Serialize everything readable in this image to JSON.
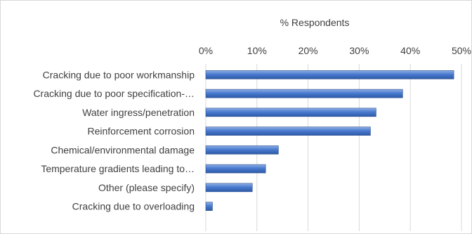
{
  "chart_data": {
    "type": "bar",
    "orientation": "horizontal",
    "title": "",
    "xlabel": "% Respondents",
    "ylabel": "",
    "xlim": [
      0,
      50
    ],
    "x_ticks": [
      "0%",
      "10%",
      "20%",
      "30%",
      "40%",
      "50%"
    ],
    "x_axis_position": "top",
    "grid": true,
    "legend": "none",
    "categories": [
      "Cracking due to poor workmanship",
      "Cracking due to poor specification-…",
      "Water ingress/penetration",
      "Reinforcement corrosion",
      "Chemical/environmental damage",
      "Temperature gradients leading to…",
      "Other (please specify)",
      "Cracking due to overloading"
    ],
    "values": [
      48.5,
      38.5,
      33.3,
      32.2,
      14.2,
      11.7,
      9.1,
      1.3
    ],
    "bar_color": "#4472C4"
  }
}
